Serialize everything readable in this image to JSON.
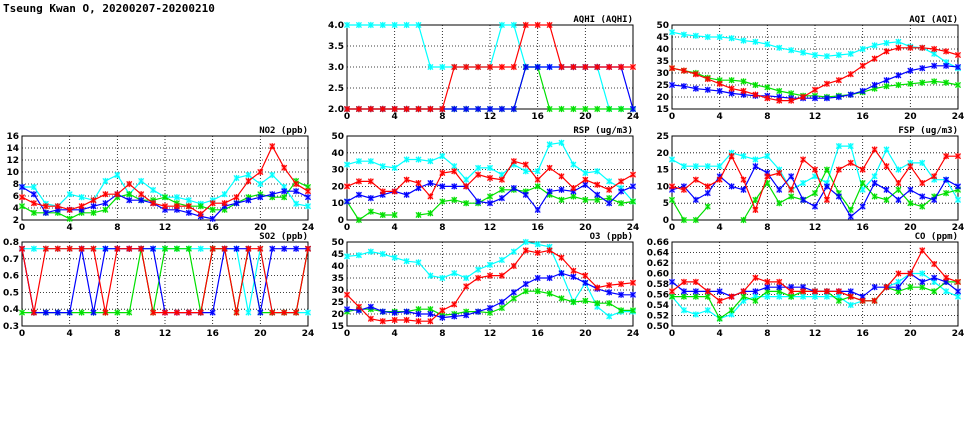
{
  "title": "Tseung Kwan O, 20200207-20200210",
  "series_colors": {
    "red": "#ff0000",
    "green": "#00e000",
    "blue": "#0000ff",
    "cyan": "#00ffff"
  },
  "chart_data": [
    {
      "id": "aqhi",
      "type": "line",
      "title": "AQHI (AQHI)",
      "xlim": [
        0,
        24
      ],
      "xticks": [
        0,
        4,
        8,
        12,
        16,
        20,
        24
      ],
      "ylim": [
        2,
        4
      ],
      "yticks": [
        "2.0",
        "2.5",
        "3.0",
        "3.5",
        "4.0"
      ],
      "grid": true,
      "series": [
        {
          "name": "cyan",
          "values": [
            4,
            4,
            4,
            4,
            4,
            4,
            4,
            3,
            3,
            3,
            3,
            3,
            3,
            4,
            4,
            3,
            3,
            3,
            3,
            3,
            3,
            3,
            2,
            2,
            2
          ]
        },
        {
          "name": "green",
          "values": [
            2,
            2,
            2,
            2,
            2,
            2,
            2,
            2,
            2,
            2,
            2,
            2,
            2,
            2,
            2,
            3,
            3,
            2,
            2,
            2,
            2,
            2,
            2,
            2,
            2
          ]
        },
        {
          "name": "blue",
          "values": [
            2,
            2,
            2,
            2,
            2,
            2,
            2,
            2,
            2,
            2,
            2,
            2,
            2,
            2,
            2,
            3,
            3,
            3,
            3,
            3,
            3,
            3,
            3,
            3,
            2
          ]
        },
        {
          "name": "red",
          "values": [
            2,
            2,
            2,
            2,
            2,
            2,
            2,
            2,
            2,
            3,
            3,
            3,
            3,
            3,
            3,
            4,
            4,
            4,
            3,
            3,
            3,
            3,
            3,
            3,
            3
          ]
        }
      ]
    },
    {
      "id": "aqi",
      "type": "line",
      "title": "AQI (AQI)",
      "xlim": [
        0,
        24
      ],
      "xticks": [
        0,
        4,
        8,
        12,
        16,
        20,
        24
      ],
      "ylim": [
        15,
        50
      ],
      "yticks": [
        "15",
        "20",
        "25",
        "30",
        "35",
        "40",
        "45",
        "50"
      ],
      "grid": true,
      "series": [
        {
          "name": "cyan",
          "values": [
            47,
            46,
            45.5,
            45,
            45,
            44.5,
            43.5,
            43,
            42,
            40.5,
            39.5,
            38.5,
            37.5,
            37,
            37.5,
            38,
            40,
            41.5,
            42.5,
            43,
            41,
            40.5,
            38,
            34.5,
            32
          ]
        },
        {
          "name": "green",
          "values": [
            32,
            31,
            30,
            28,
            27,
            27,
            26.5,
            25,
            24,
            22.5,
            21.5,
            20.5,
            20.5,
            20,
            20.5,
            21,
            22,
            23.5,
            24.5,
            25,
            25.5,
            26,
            26.5,
            26,
            25
          ]
        },
        {
          "name": "blue",
          "values": [
            25,
            24.5,
            23.5,
            23,
            22.5,
            21.5,
            21,
            20.5,
            20.5,
            20,
            19.5,
            19.5,
            19.5,
            19.5,
            20,
            21,
            22.5,
            25,
            27,
            29,
            31,
            32,
            33,
            33,
            32.5
          ]
        },
        {
          "name": "red",
          "values": [
            32,
            31,
            29.5,
            27.5,
            25.5,
            23.5,
            22.5,
            21,
            19.5,
            18.5,
            18.5,
            20,
            23,
            25.5,
            27,
            29.5,
            33,
            36,
            39,
            40.5,
            40.5,
            40.5,
            40,
            39,
            37.5
          ]
        }
      ]
    },
    {
      "id": "no2",
      "type": "line",
      "title": "NO2 (ppb)",
      "xlim": [
        0,
        24
      ],
      "xticks": [
        0,
        4,
        8,
        12,
        16,
        20,
        24
      ],
      "ylim": [
        2,
        16
      ],
      "yticks": [
        "2",
        "4",
        "6",
        "8",
        "10",
        "12",
        "14",
        "16"
      ],
      "grid": true,
      "series": [
        {
          "name": "cyan",
          "values": [
            7.5,
            7.5,
            4.7,
            4.3,
            6.3,
            5.8,
            5.3,
            8.5,
            9.5,
            6.3,
            8.5,
            7,
            5.8,
            5.8,
            5.3,
            4.7,
            5.3,
            6.3,
            9,
            9.5,
            8,
            9.5,
            7.5,
            4.7,
            4.3
          ]
        },
        {
          "name": "green",
          "values": [
            4.3,
            3.2,
            3.2,
            3.2,
            2.2,
            3.2,
            3.2,
            3.7,
            5.8,
            6.3,
            5.3,
            5.3,
            5.8,
            4.8,
            4.3,
            4.3,
            3.7,
            3.7,
            4.8,
            5.8,
            6.3,
            5.8,
            5.8,
            8.5,
            7.5
          ]
        },
        {
          "name": "blue",
          "values": [
            7.5,
            6.3,
            3.2,
            3.7,
            3.7,
            3.7,
            4.3,
            4.8,
            6.3,
            5.3,
            5.3,
            4.8,
            3.7,
            3.7,
            3.2,
            2.6,
            2.2,
            4.3,
            4.8,
            5.3,
            5.8,
            6.3,
            6.8,
            6.8,
            5.8
          ]
        },
        {
          "name": "red",
          "values": [
            5.8,
            4.8,
            4.3,
            4.3,
            3.7,
            4.3,
            5.3,
            6.3,
            6.3,
            8,
            6.3,
            4.8,
            4.3,
            4.3,
            4.3,
            3,
            4.8,
            4.8,
            5.8,
            8.5,
            10,
            14.3,
            10.7,
            8,
            6.8
          ]
        }
      ]
    },
    {
      "id": "rsp",
      "type": "line",
      "title": "RSP (ug/m3)",
      "xlim": [
        0,
        24
      ],
      "xticks": [
        0,
        4,
        8,
        12,
        16,
        20,
        24
      ],
      "ylim": [
        0,
        50
      ],
      "yticks": [
        "0",
        "10",
        "20",
        "30",
        "40",
        "50"
      ],
      "grid": true,
      "series": [
        {
          "name": "cyan",
          "values": [
            33,
            35,
            35,
            32,
            31,
            36,
            36,
            35,
            38,
            32,
            24,
            31,
            31,
            27,
            33,
            29,
            29,
            45,
            46,
            33,
            28,
            29,
            23,
            19,
            11
          ]
        },
        {
          "name": "green",
          "values": [
            11,
            0,
            5,
            3,
            3,
            null,
            3,
            4,
            11,
            12,
            10,
            10,
            14,
            18,
            18,
            17,
            20,
            15,
            12,
            14,
            12,
            12,
            13,
            10,
            11
          ]
        },
        {
          "name": "blue",
          "values": [
            11,
            15,
            13,
            15,
            17,
            15,
            19,
            22,
            20,
            20,
            20,
            11,
            10,
            13,
            19,
            15,
            6,
            17,
            18,
            17,
            21,
            15,
            10,
            17,
            20
          ]
        },
        {
          "name": "red",
          "values": [
            20,
            23,
            23,
            17,
            17,
            24,
            22,
            14,
            28,
            29,
            20,
            27,
            25,
            24,
            35,
            33,
            24,
            31,
            26,
            19,
            24,
            21,
            18,
            23,
            27
          ]
        }
      ]
    },
    {
      "id": "fsp",
      "type": "line",
      "title": "FSP (ug/m3)",
      "xlim": [
        0,
        24
      ],
      "xticks": [
        0,
        4,
        8,
        12,
        16,
        20,
        24
      ],
      "ylim": [
        0,
        25
      ],
      "yticks": [
        "0",
        "5",
        "10",
        "15",
        "20",
        "25"
      ],
      "grid": true,
      "series": [
        {
          "name": "cyan",
          "values": [
            18,
            16,
            16,
            16,
            16,
            20,
            19,
            18,
            19,
            15,
            9,
            11,
            13,
            11,
            22,
            22,
            9,
            13,
            21,
            15,
            17,
            17,
            12,
            12,
            6
          ]
        },
        {
          "name": "green",
          "values": [
            6,
            0,
            0,
            4,
            null,
            null,
            0,
            6,
            11,
            5,
            7,
            6,
            8,
            15,
            8,
            3,
            11,
            7,
            6,
            9,
            5,
            4,
            7,
            8,
            9
          ]
        },
        {
          "name": "blue",
          "values": [
            9,
            10,
            6,
            8,
            13,
            10,
            9,
            16,
            14,
            9,
            13,
            6,
            4,
            10,
            7,
            1,
            4,
            11,
            9,
            6,
            9,
            7,
            6,
            12,
            10
          ]
        },
        {
          "name": "red",
          "values": [
            10,
            9,
            12,
            10,
            12,
            19,
            12,
            3,
            13,
            14,
            9,
            18,
            15,
            6,
            15,
            17,
            15,
            21,
            16,
            11,
            16,
            11,
            13,
            19,
            19
          ]
        }
      ]
    },
    {
      "id": "so2",
      "type": "line",
      "title": "SO2 (ppb)",
      "xlim": [
        0,
        24
      ],
      "xticks": [
        0,
        4,
        8,
        12,
        16,
        20,
        24
      ],
      "ylim": [
        0.3,
        0.8
      ],
      "yticks": [
        "0.3",
        "0.4",
        "0.5",
        "0.6",
        "0.7",
        "0.8"
      ],
      "grid": true,
      "series": [
        {
          "name": "cyan",
          "values": [
            0.76,
            0.76,
            0.76,
            0.76,
            0.76,
            0.76,
            0.76,
            0.76,
            0.76,
            0.76,
            0.76,
            0.76,
            0.76,
            0.76,
            0.76,
            0.76,
            0.76,
            0.76,
            0.76,
            0.38,
            0.76,
            0.38,
            0.38,
            0.38,
            0.38
          ]
        },
        {
          "name": "green",
          "values": [
            0.38,
            0.38,
            0.38,
            0.38,
            0.38,
            0.38,
            0.38,
            0.38,
            0.38,
            0.38,
            0.76,
            0.38,
            0.76,
            0.76,
            0.76,
            0.38,
            0.76,
            0.76,
            0.38,
            0.76,
            0.38,
            0.38,
            0.38,
            0.38,
            0.76
          ]
        },
        {
          "name": "blue",
          "values": [
            0.76,
            0.38,
            0.38,
            0.38,
            0.38,
            0.76,
            0.38,
            0.76,
            0.76,
            0.76,
            0.76,
            0.76,
            0.38,
            0.38,
            0.38,
            0.38,
            0.38,
            0.76,
            0.76,
            0.76,
            0.38,
            0.76,
            0.76,
            0.76,
            0.76
          ]
        },
        {
          "name": "red",
          "values": [
            0.76,
            0.38,
            0.76,
            0.76,
            0.76,
            0.76,
            0.76,
            0.38,
            0.76,
            0.76,
            0.76,
            0.38,
            0.38,
            0.38,
            0.38,
            0.38,
            0.76,
            0.76,
            0.38,
            0.76,
            0.76,
            0.38,
            0.38,
            0.38,
            0.76
          ]
        }
      ]
    },
    {
      "id": "o3",
      "type": "line",
      "title": "O3 (ppb)",
      "xlim": [
        0,
        24
      ],
      "xticks": [
        0,
        4,
        8,
        12,
        16,
        20,
        24
      ],
      "ylim": [
        15,
        50
      ],
      "yticks": [
        "15",
        "20",
        "25",
        "30",
        "35",
        "40",
        "45",
        "50"
      ],
      "grid": true,
      "series": [
        {
          "name": "cyan",
          "values": [
            44,
            44.5,
            46,
            45,
            43.5,
            42,
            41.5,
            36,
            35,
            37,
            35,
            38.5,
            40.5,
            42.5,
            46,
            50,
            49,
            48,
            37,
            25,
            33,
            23,
            19,
            21,
            21
          ]
        },
        {
          "name": "green",
          "values": [
            21,
            22,
            22,
            21,
            21,
            21,
            22,
            22,
            19.5,
            20,
            21,
            21,
            20.5,
            22.5,
            26.5,
            29.5,
            29.5,
            28.5,
            26.5,
            25,
            25.5,
            24.5,
            24.5,
            21.5,
            21.5
          ]
        },
        {
          "name": "blue",
          "values": [
            22,
            21.5,
            23,
            21,
            20.5,
            21,
            20,
            20,
            18.5,
            19,
            19.5,
            21,
            22.5,
            25,
            29,
            32.5,
            35,
            35,
            37,
            35.5,
            33,
            30.5,
            29,
            28,
            28
          ]
        },
        {
          "name": "red",
          "values": [
            28,
            23,
            18,
            17,
            17.5,
            17.5,
            17,
            17,
            21.5,
            24,
            31.5,
            35,
            36,
            36,
            40,
            46.5,
            45.5,
            46.5,
            43.5,
            38,
            36,
            31,
            32,
            32.5,
            33
          ]
        }
      ]
    },
    {
      "id": "co",
      "type": "line",
      "title": "CO (ppm)",
      "xlim": [
        0,
        24
      ],
      "xticks": [
        0,
        4,
        8,
        12,
        16,
        20,
        24
      ],
      "ylim": [
        0.5,
        0.66
      ],
      "yticks": [
        "0.50",
        "0.52",
        "0.54",
        "0.56",
        "0.58",
        "0.60",
        "0.62",
        "0.64",
        "0.66"
      ],
      "grid": true,
      "series": [
        {
          "name": "cyan",
          "values": [
            0.556,
            0.53,
            0.522,
            0.53,
            0.514,
            0.522,
            0.548,
            0.556,
            0.556,
            0.556,
            0.556,
            0.556,
            0.556,
            0.556,
            0.556,
            0.54,
            0.548,
            0.548,
            0.574,
            0.584,
            0.6,
            0.6,
            0.584,
            0.566,
            0.556
          ]
        },
        {
          "name": "green",
          "values": [
            0.556,
            0.556,
            0.556,
            0.556,
            0.514,
            0.53,
            0.556,
            0.548,
            0.566,
            0.566,
            0.556,
            0.566,
            0.566,
            0.566,
            0.548,
            0.556,
            0.548,
            0.548,
            0.574,
            0.566,
            0.574,
            0.574,
            0.566,
            0.584,
            0.584
          ]
        },
        {
          "name": "blue",
          "values": [
            0.584,
            0.566,
            0.566,
            0.566,
            0.566,
            0.556,
            0.566,
            0.566,
            0.574,
            0.574,
            0.574,
            0.574,
            0.566,
            0.566,
            0.566,
            0.566,
            0.556,
            0.574,
            0.574,
            0.574,
            0.6,
            0.584,
            0.592,
            0.584,
            0.566
          ]
        },
        {
          "name": "red",
          "values": [
            0.566,
            0.584,
            0.584,
            0.566,
            0.548,
            0.556,
            0.566,
            0.592,
            0.584,
            0.584,
            0.566,
            0.566,
            0.566,
            0.566,
            0.566,
            0.556,
            0.548,
            0.548,
            0.574,
            0.6,
            0.6,
            0.644,
            0.618,
            0.592,
            0.584
          ]
        }
      ]
    }
  ]
}
